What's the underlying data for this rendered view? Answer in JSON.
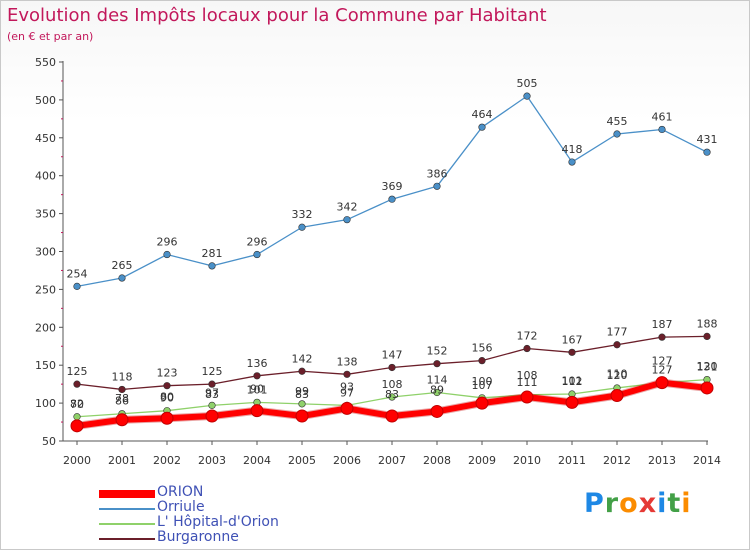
{
  "title": "Evolution des Impôts locaux pour la Commune par Habitant",
  "subtitle": "(en € et par an)",
  "logo": {
    "text": "Proxiti",
    "letters": [
      {
        "ch": "P",
        "color": "#1e88e5"
      },
      {
        "ch": "r",
        "color": "#43a047"
      },
      {
        "ch": "o",
        "color": "#fb8c00"
      },
      {
        "ch": "x",
        "color": "#e53935"
      },
      {
        "ch": "i",
        "color": "#1e88e5"
      },
      {
        "ch": "t",
        "color": "#43a047"
      },
      {
        "ch": "i",
        "color": "#fb8c00"
      }
    ]
  },
  "chart_data": {
    "type": "line",
    "title": "Evolution des Impôts locaux pour la Commune par Habitant",
    "subtitle": "(en € et par an)",
    "x": [
      2000,
      2001,
      2002,
      2003,
      2004,
      2005,
      2006,
      2007,
      2008,
      2009,
      2010,
      2011,
      2012,
      2013,
      2014
    ],
    "ylim": [
      50,
      550
    ],
    "yticks": [
      50,
      100,
      150,
      200,
      250,
      300,
      350,
      400,
      450,
      500,
      550
    ],
    "grid": false,
    "legend_position": "bottom-left",
    "series": [
      {
        "name": "ORION",
        "color": "#ff0000",
        "values": [
          70,
          78,
          80,
          83,
          90,
          83,
          93,
          83,
          89,
          100,
          108,
          101,
          110,
          127,
          120
        ]
      },
      {
        "name": "Orriule",
        "color": "#4a90c8",
        "values": [
          254,
          265,
          296,
          281,
          296,
          332,
          342,
          369,
          386,
          464,
          505,
          418,
          455,
          461,
          431
        ]
      },
      {
        "name": "L' Hôpital-d'Orion",
        "color": "#8fd16a",
        "values": [
          82,
          86,
          90,
          97,
          101,
          99,
          97,
          108,
          114,
          107,
          111,
          112,
          120,
          127,
          131
        ]
      },
      {
        "name": "Burgaronne",
        "color": "#6b1f2a",
        "values": [
          125,
          118,
          123,
          125,
          136,
          142,
          138,
          147,
          152,
          156,
          172,
          167,
          177,
          187,
          188
        ]
      }
    ]
  }
}
